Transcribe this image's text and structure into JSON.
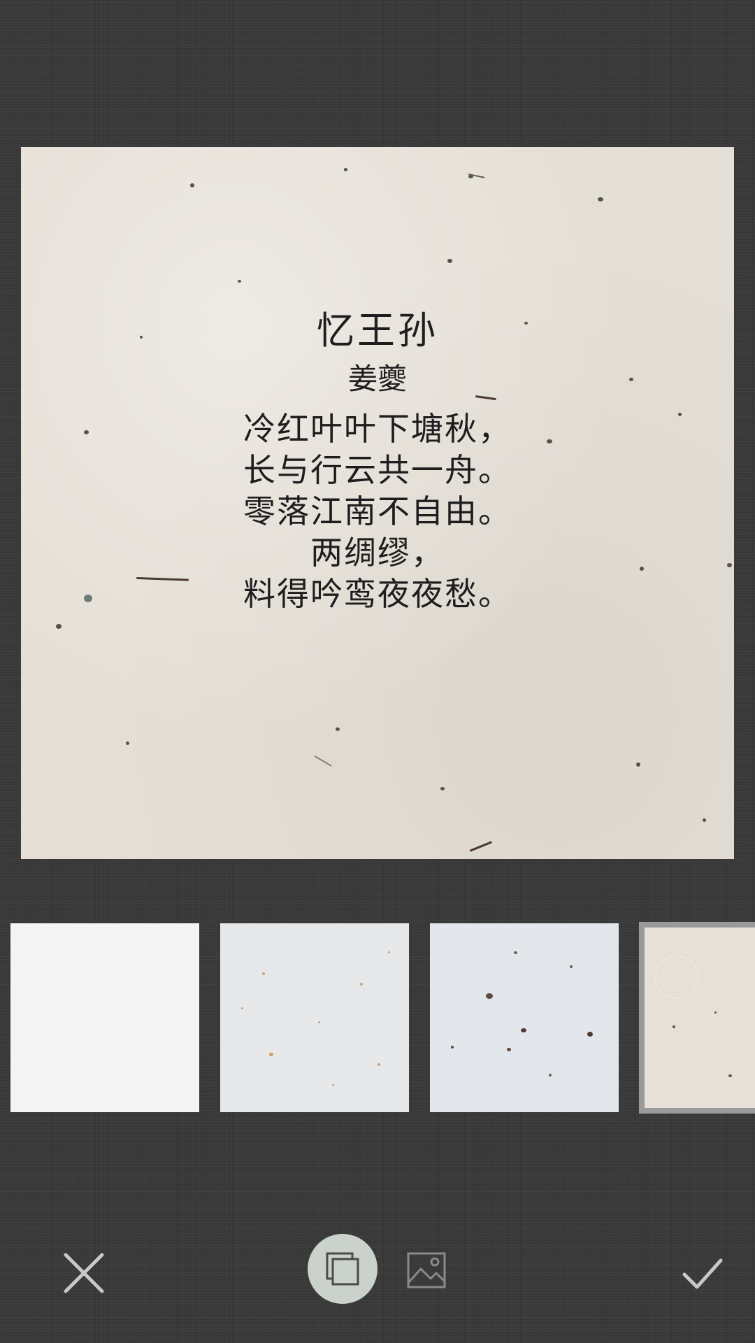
{
  "poem": {
    "title": "忆王孙",
    "author": "姜夔",
    "lines": [
      "冷红叶叶下塘秋，",
      "长与行云共一舟。",
      "零落江南不自由。",
      "两绸缪，",
      "料得吟鸾夜夜愁。"
    ]
  },
  "textures": {
    "selected_index": 3,
    "items": [
      {
        "name": "plain-white"
      },
      {
        "name": "speckled-gray"
      },
      {
        "name": "fiber-blue-gray"
      },
      {
        "name": "rice-paper-beige"
      }
    ]
  },
  "toolbar": {
    "icons": [
      "close-icon",
      "layers-icon",
      "image-icon",
      "check-icon"
    ]
  },
  "colors": {
    "background": "#3a3a3a",
    "paper": "#e4dfd6",
    "text": "#1e1e1e",
    "selected_border": "#9a9a9a",
    "layers_button": "#cbd2cc",
    "icon": "#c8c8c8"
  }
}
